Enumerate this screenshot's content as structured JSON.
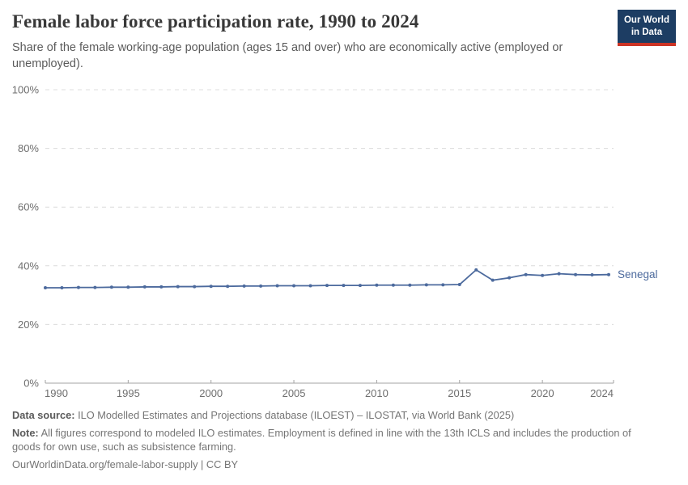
{
  "header": {
    "title": "Female labor force participation rate, 1990 to 2024",
    "subtitle": "Share of the female working-age population (ages 15 and over) who are economically active (employed or unemployed).",
    "logo": {
      "line1": "Our World",
      "line2": "in Data",
      "bg_color": "#1d3d63",
      "stripe_color": "#cc3425"
    }
  },
  "chart_data": {
    "type": "line",
    "title": "Female labor force participation rate, 1990 to 2024",
    "x": [
      1990,
      1991,
      1992,
      1993,
      1994,
      1995,
      1996,
      1997,
      1998,
      1999,
      2000,
      2001,
      2002,
      2003,
      2004,
      2005,
      2006,
      2007,
      2008,
      2009,
      2010,
      2011,
      2012,
      2013,
      2014,
      2015,
      2016,
      2017,
      2018,
      2019,
      2020,
      2021,
      2022,
      2023,
      2024
    ],
    "series": [
      {
        "name": "Senegal",
        "color": "#4c6a9d",
        "values": [
          32.5,
          32.5,
          32.6,
          32.6,
          32.7,
          32.7,
          32.8,
          32.8,
          32.9,
          32.9,
          33.0,
          33.0,
          33.1,
          33.1,
          33.2,
          33.2,
          33.2,
          33.3,
          33.3,
          33.3,
          33.4,
          33.4,
          33.4,
          33.5,
          33.5,
          33.6,
          38.6,
          35.1,
          35.9,
          37.0,
          36.7,
          37.3,
          37.0,
          36.9,
          37.0
        ]
      }
    ],
    "xlabel": "",
    "ylabel": "",
    "ylim": [
      0,
      100
    ],
    "xlim": [
      1990,
      2024
    ],
    "yticks": [
      0,
      20,
      40,
      60,
      80,
      100
    ],
    "ytick_labels": [
      "0%",
      "20%",
      "40%",
      "60%",
      "80%",
      "100%"
    ],
    "xticks": [
      1990,
      1995,
      2000,
      2005,
      2010,
      2015,
      2020,
      2024
    ],
    "xtick_labels": [
      "1990",
      "1995",
      "2000",
      "2005",
      "2010",
      "2015",
      "2020",
      "2024"
    ],
    "grid": "horizontal-dashed",
    "grid_color": "#dcdcdc",
    "axis_color": "#a3a3a3",
    "tick_label_color": "#6e6e6e",
    "legend_position": "end-of-line-label"
  },
  "footer": {
    "data_source_label": "Data source:",
    "data_source_text": "ILO Modelled Estimates and Projections database (ILOEST) – ILOSTAT, via World Bank (2025)",
    "note_label": "Note:",
    "note_text": "All figures correspond to modeled ILO estimates. Employment is defined in line with the 13th ICLS and includes the production of goods for own use, such as subsistence farming.",
    "link_text": "OurWorldinData.org/female-labor-supply | CC BY"
  }
}
